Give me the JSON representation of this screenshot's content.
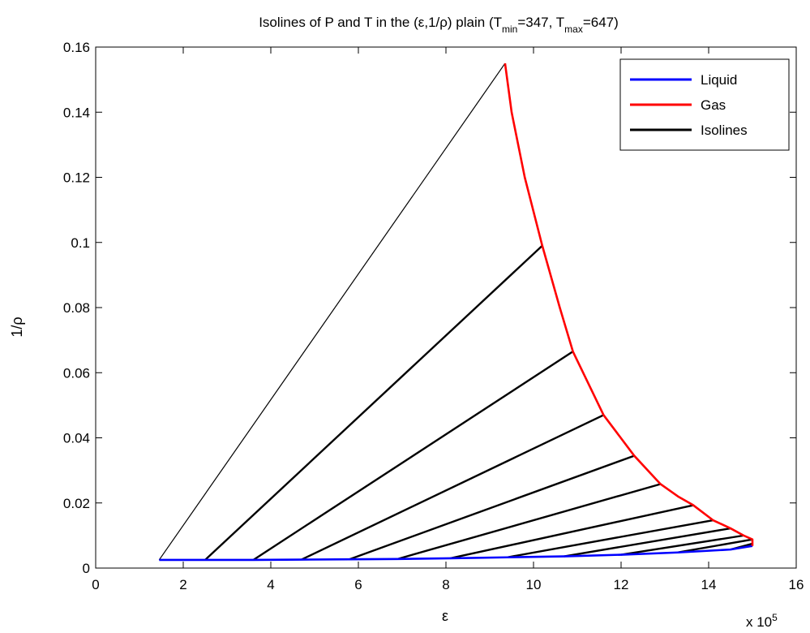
{
  "chart_data": {
    "type": "line",
    "title_parts": [
      {
        "text": "Isolines of P and T in the (ε,1/ρ) plain (T",
        "sub": false
      },
      {
        "text": "min",
        "sub": true
      },
      {
        "text": "=347, T",
        "sub": false
      },
      {
        "text": "max",
        "sub": true
      },
      {
        "text": "=647)",
        "sub": false
      }
    ],
    "xlabel": "ε",
    "ylabel": "1/ρ",
    "x_exponent": {
      "base": "x 10",
      "power": "5"
    },
    "xlim": [
      0,
      16
    ],
    "ylim": [
      0,
      0.16
    ],
    "x_ticks": [
      0,
      2,
      4,
      6,
      8,
      10,
      12,
      14,
      16
    ],
    "x_tick_labels": [
      "0",
      "2",
      "4",
      "6",
      "8",
      "10",
      "12",
      "14",
      "16"
    ],
    "y_ticks": [
      0,
      0.02,
      0.04,
      0.06,
      0.08,
      0.1,
      0.12,
      0.14,
      0.16
    ],
    "y_tick_labels": [
      "0",
      "0.02",
      "0.04",
      "0.06",
      "0.08",
      "0.1",
      "0.12",
      "0.14",
      "0.16"
    ],
    "grid": false,
    "legend_position": "top-right",
    "series": [
      {
        "name": "Liquid",
        "color": "#0000ff",
        "points": [
          [
            1.45,
            0.0025
          ],
          [
            2.5,
            0.0025
          ],
          [
            3.6,
            0.0025
          ],
          [
            4.7,
            0.0026
          ],
          [
            5.8,
            0.0027
          ],
          [
            6.9,
            0.0028
          ],
          [
            8.1,
            0.003
          ],
          [
            9.4,
            0.0033
          ],
          [
            10.7,
            0.0036
          ],
          [
            12.0,
            0.0041
          ],
          [
            13.3,
            0.0048
          ],
          [
            14.5,
            0.0057
          ],
          [
            15.0,
            0.0068
          ]
        ]
      },
      {
        "name": "Gas",
        "color": "#ff0000",
        "points": [
          [
            9.35,
            0.155
          ],
          [
            9.5,
            0.14
          ],
          [
            9.8,
            0.12
          ],
          [
            10.2,
            0.099
          ],
          [
            10.6,
            0.08
          ],
          [
            10.9,
            0.0665
          ],
          [
            11.6,
            0.047
          ],
          [
            12.3,
            0.0345
          ],
          [
            12.9,
            0.0258
          ],
          [
            13.3,
            0.022
          ],
          [
            13.65,
            0.0193
          ],
          [
            14.1,
            0.0147
          ],
          [
            14.5,
            0.0122
          ],
          [
            14.8,
            0.01
          ],
          [
            15.0,
            0.0088
          ],
          [
            15.0,
            0.0075
          ],
          [
            15.0,
            0.0068
          ]
        ]
      }
    ],
    "isolines": {
      "name": "Isolines",
      "color": "#000000",
      "lines": [
        [
          [
            1.45,
            0.0025
          ],
          [
            9.35,
            0.155
          ]
        ],
        [
          [
            2.5,
            0.0025
          ],
          [
            10.2,
            0.099
          ]
        ],
        [
          [
            3.6,
            0.0025
          ],
          [
            10.9,
            0.0665
          ]
        ],
        [
          [
            4.7,
            0.0026
          ],
          [
            11.6,
            0.047
          ]
        ],
        [
          [
            5.8,
            0.0027
          ],
          [
            12.3,
            0.0345
          ]
        ],
        [
          [
            6.9,
            0.0028
          ],
          [
            12.9,
            0.0258
          ]
        ],
        [
          [
            8.1,
            0.003
          ],
          [
            13.65,
            0.0193
          ]
        ],
        [
          [
            9.4,
            0.0033
          ],
          [
            14.1,
            0.0147
          ]
        ],
        [
          [
            10.7,
            0.0036
          ],
          [
            14.5,
            0.0122
          ]
        ],
        [
          [
            12.0,
            0.0041
          ],
          [
            14.8,
            0.01
          ]
        ],
        [
          [
            13.3,
            0.0048
          ],
          [
            15.0,
            0.0088
          ]
        ],
        [
          [
            14.5,
            0.0057
          ],
          [
            15.0,
            0.0075
          ]
        ]
      ]
    },
    "legend": [
      {
        "label": "Liquid",
        "color": "#0000ff"
      },
      {
        "label": "Gas",
        "color": "#ff0000"
      },
      {
        "label": "Isolines",
        "color": "#000000"
      }
    ]
  }
}
